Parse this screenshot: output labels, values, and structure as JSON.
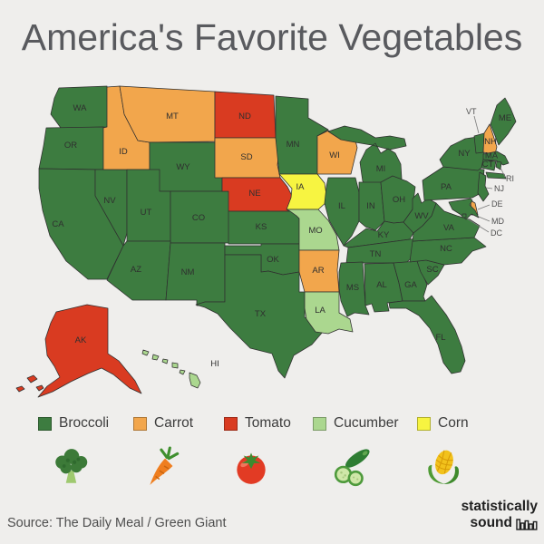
{
  "title": "America's Favorite Vegetables",
  "source": "Source: The Daily Meal / Green Giant",
  "brand": {
    "line1": "statistically",
    "line2": "sound",
    "icon": "bar-chart-icon"
  },
  "colors": {
    "background": "#efeeec",
    "state_border": "#2f2f2f",
    "state_label": "#2f2f2f",
    "title_text": "#595a5e"
  },
  "legend": [
    {
      "label": "Broccoli",
      "color": "#3d7c40",
      "emoji": "🥦",
      "icon": "broccoli-icon"
    },
    {
      "label": "Carrot",
      "color": "#f2a64c",
      "emoji": "🥕",
      "icon": "carrot-icon"
    },
    {
      "label": "Tomato",
      "color": "#d93b21",
      "emoji": "🍅",
      "icon": "tomato-icon"
    },
    {
      "label": "Cucumber",
      "color": "#abd78f",
      "emoji": "🥒",
      "icon": "cucumber-icon"
    },
    {
      "label": "Corn",
      "color": "#f7f441",
      "emoji": "🌽",
      "icon": "corn-icon"
    }
  ],
  "chart_data": {
    "type": "choropleth",
    "region": "United States",
    "categories": [
      "Broccoli",
      "Carrot",
      "Tomato",
      "Cucumber",
      "Corn"
    ],
    "states": [
      {
        "id": "WA",
        "vegetable": "Broccoli"
      },
      {
        "id": "OR",
        "vegetable": "Broccoli"
      },
      {
        "id": "CA",
        "vegetable": "Broccoli"
      },
      {
        "id": "NV",
        "vegetable": "Broccoli"
      },
      {
        "id": "ID",
        "vegetable": "Carrot"
      },
      {
        "id": "MT",
        "vegetable": "Carrot"
      },
      {
        "id": "WY",
        "vegetable": "Broccoli"
      },
      {
        "id": "UT",
        "vegetable": "Broccoli"
      },
      {
        "id": "CO",
        "vegetable": "Broccoli"
      },
      {
        "id": "AZ",
        "vegetable": "Broccoli"
      },
      {
        "id": "NM",
        "vegetable": "Broccoli"
      },
      {
        "id": "ND",
        "vegetable": "Tomato"
      },
      {
        "id": "SD",
        "vegetable": "Carrot"
      },
      {
        "id": "NE",
        "vegetable": "Tomato"
      },
      {
        "id": "KS",
        "vegetable": "Broccoli"
      },
      {
        "id": "OK",
        "vegetable": "Broccoli"
      },
      {
        "id": "TX",
        "vegetable": "Broccoli"
      },
      {
        "id": "MN",
        "vegetable": "Broccoli"
      },
      {
        "id": "IA",
        "vegetable": "Corn"
      },
      {
        "id": "MO",
        "vegetable": "Cucumber"
      },
      {
        "id": "AR",
        "vegetable": "Carrot"
      },
      {
        "id": "LA",
        "vegetable": "Cucumber"
      },
      {
        "id": "WI",
        "vegetable": "Carrot"
      },
      {
        "id": "IL",
        "vegetable": "Broccoli"
      },
      {
        "id": "MI",
        "vegetable": "Broccoli"
      },
      {
        "id": "IN",
        "vegetable": "Broccoli"
      },
      {
        "id": "OH",
        "vegetable": "Broccoli"
      },
      {
        "id": "KY",
        "vegetable": "Broccoli"
      },
      {
        "id": "TN",
        "vegetable": "Broccoli"
      },
      {
        "id": "MS",
        "vegetable": "Broccoli"
      },
      {
        "id": "AL",
        "vegetable": "Broccoli"
      },
      {
        "id": "GA",
        "vegetable": "Broccoli"
      },
      {
        "id": "FL",
        "vegetable": "Broccoli"
      },
      {
        "id": "SC",
        "vegetable": "Broccoli"
      },
      {
        "id": "NC",
        "vegetable": "Broccoli"
      },
      {
        "id": "VA",
        "vegetable": "Broccoli"
      },
      {
        "id": "WV",
        "vegetable": "Broccoli"
      },
      {
        "id": "PA",
        "vegetable": "Broccoli"
      },
      {
        "id": "NY",
        "vegetable": "Broccoli"
      },
      {
        "id": "NJ",
        "vegetable": "Broccoli"
      },
      {
        "id": "VT",
        "vegetable": "Broccoli"
      },
      {
        "id": "NH",
        "vegetable": "Carrot"
      },
      {
        "id": "ME",
        "vegetable": "Broccoli"
      },
      {
        "id": "MA",
        "vegetable": "Broccoli"
      },
      {
        "id": "CT",
        "vegetable": "Broccoli"
      },
      {
        "id": "RI",
        "vegetable": "Broccoli"
      },
      {
        "id": "DE",
        "vegetable": "Carrot"
      },
      {
        "id": "MD",
        "vegetable": "Broccoli"
      },
      {
        "id": "DC",
        "vegetable": "Broccoli"
      },
      {
        "id": "AK",
        "vegetable": "Tomato"
      },
      {
        "id": "HI",
        "vegetable": "Cucumber"
      }
    ]
  }
}
